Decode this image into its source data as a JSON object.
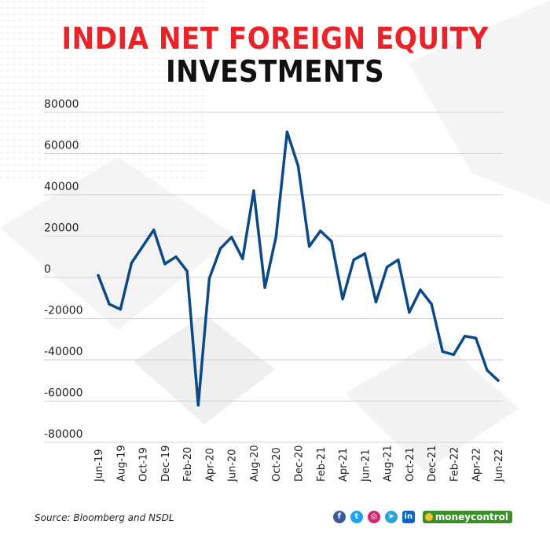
{
  "title_line1": "INDIA NET FOREIGN EQUITY",
  "title_line2": "INVESTMENTS",
  "source": "Source: Bloomberg and NSDL",
  "brand": "moneycontrol",
  "social_icons": [
    "facebook-icon",
    "twitter-icon",
    "instagram-icon",
    "telegram-icon",
    "linkedin-icon"
  ],
  "colors": {
    "line": "#0d4a85",
    "title_accent": "#e8232a",
    "brand": "#3a8f2a"
  },
  "chart_data": {
    "type": "line",
    "title": "INDIA NET FOREIGN EQUITY INVESTMENTS",
    "xlabel": "",
    "ylabel": "",
    "ylim": [
      -80000,
      80000
    ],
    "yticks": [
      80000,
      60000,
      40000,
      20000,
      0,
      -20000,
      -40000,
      -60000,
      -80000
    ],
    "grid": true,
    "x": [
      "Jun-19",
      "Jul-19",
      "Aug-19",
      "Sep-19",
      "Oct-19",
      "Nov-19",
      "Dec-19",
      "Jan-20",
      "Feb-20",
      "Mar-20",
      "Apr-20",
      "May-20",
      "Jun-20",
      "Jul-20",
      "Aug-20",
      "Sep-20",
      "Oct-20",
      "Nov-20",
      "Dec-20",
      "Jan-21",
      "Feb-21",
      "Mar-21",
      "Apr-21",
      "May-21",
      "Jun-21",
      "Jul-21",
      "Aug-21",
      "Sep-21",
      "Oct-21",
      "Nov-21",
      "Dec-21",
      "Jan-22",
      "Feb-22",
      "Mar-22",
      "Apr-22",
      "May-22",
      "Jun-22"
    ],
    "xtick_labels": [
      "Jun-19",
      "Aug-19",
      "Oct-19",
      "Dec-19",
      "Feb-20",
      "Apr-20",
      "Jun-20",
      "Aug-20",
      "Oct-20",
      "Dec-20",
      "Feb-21",
      "Apr-21",
      "Jun-21",
      "Aug-21",
      "Oct-21",
      "Dec-21",
      "Feb-22",
      "Apr-22",
      "Jun-22"
    ],
    "series": [
      {
        "values": [
          1000,
          -13000,
          -15500,
          7000,
          15000,
          23000,
          6500,
          10000,
          3000,
          -62000,
          -500,
          14000,
          19500,
          9000,
          42000,
          -5000,
          19500,
          70500,
          54000,
          15000,
          22500,
          17500,
          -10500,
          8500,
          11500,
          -12000,
          5000,
          8500,
          -17000,
          -6000,
          -13000,
          -36000,
          -37500,
          -28500,
          -29500,
          -45000,
          -50000
        ]
      }
    ]
  }
}
